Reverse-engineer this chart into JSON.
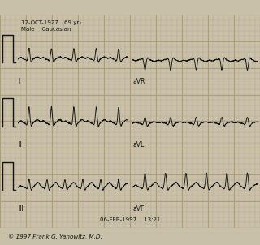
{
  "bg_color": "#c8c0a8",
  "grid_color_fine": "#b8a888",
  "grid_color_bold": "#a89870",
  "ecg_color": "#111111",
  "paper_color": "#d8d0b8",
  "title_top": "12-OCT-1927  (69 yr)",
  "title_top2": "Male    Caucasian",
  "footer_date": "06-FEB-1997    13:21",
  "footer_copy": "© 1997 Frank G. Yanowitz, M.D.",
  "fig_width": 3.2,
  "fig_height": 3.02,
  "dpi": 100
}
